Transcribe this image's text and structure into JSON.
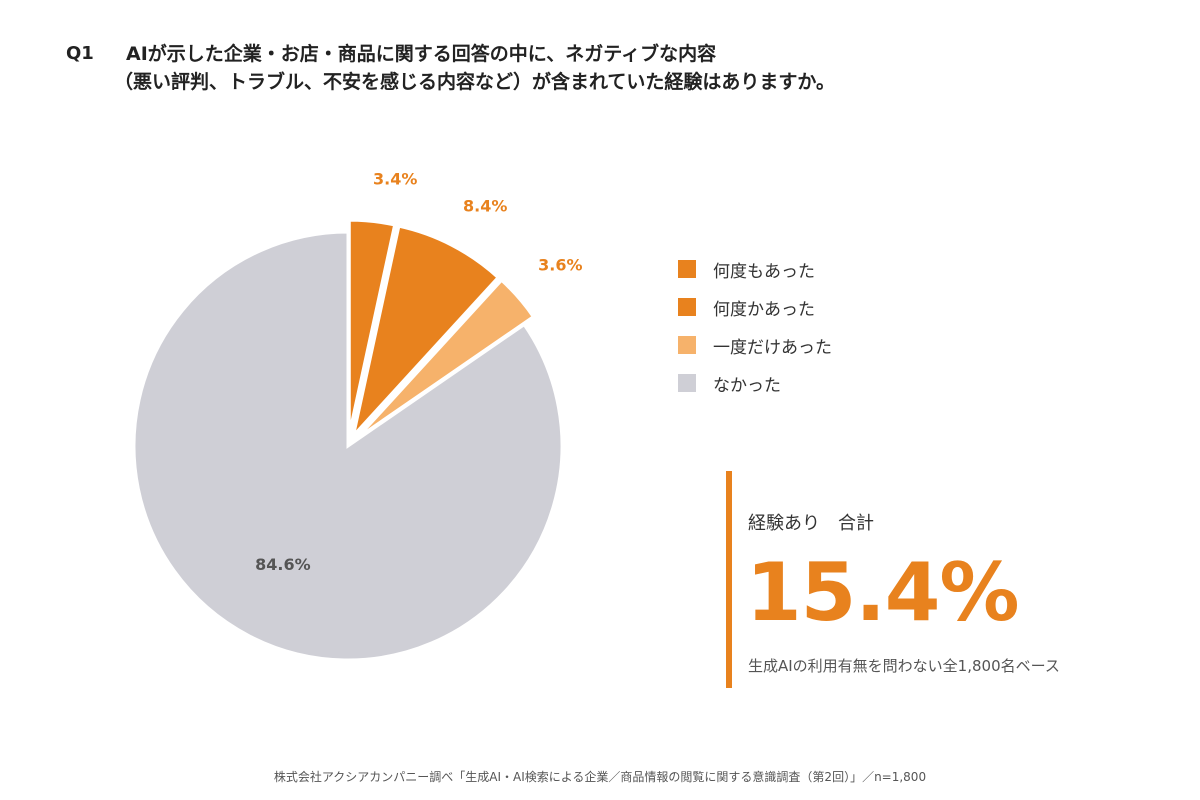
{
  "question": {
    "label": "Q1",
    "line1": "AIが示した企業・お店・商品に関する回答の中に、ネガティブな内容",
    "line2": "（悪い評判、トラブル、不安を感じる内容など）が含まれていた経験はありますか。"
  },
  "chart_data": {
    "type": "pie",
    "title": "",
    "unit": "%",
    "slices": [
      {
        "label": "何度もあった",
        "value": 3.4,
        "display": "3.4%",
        "color": "#e8821e",
        "exploded": true
      },
      {
        "label": "何度かあった",
        "value": 8.4,
        "display": "8.4%",
        "color": "#e8821e",
        "exploded": true
      },
      {
        "label": "一度だけあった",
        "value": 3.6,
        "display": "3.6%",
        "color": "#f6b26b",
        "exploded": true
      },
      {
        "label": "なかった",
        "value": 84.6,
        "display": "84.6%",
        "color": "#cfcfd6",
        "exploded": false
      }
    ],
    "start": "12 o'clock, clockwise",
    "legend_position": "right"
  },
  "summary": {
    "label": "経験あり　合計",
    "value": "15.4%",
    "note": "生成AIの利用有無を問わない全1,800名ベース",
    "accent": "#e8821e"
  },
  "colors": {
    "accent": "#e8821e",
    "light_accent": "#f6b26b",
    "grey": "#cfcfd6",
    "label_dark": "#555555"
  },
  "footer": "株式会社アクシアカンパニー調べ「生成AI・AI検索による企業／商品情報の閲覧に関する意識調査（第2回）」／n=1,800"
}
